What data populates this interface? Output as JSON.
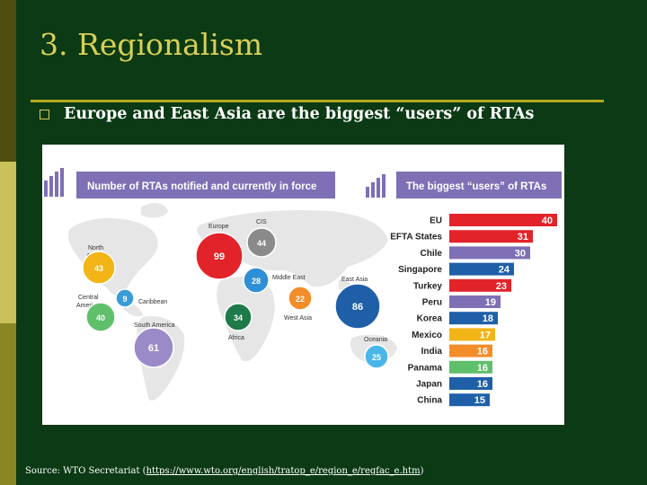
{
  "slide": {
    "title": "3. Regionalism",
    "bullet": "Europe and East Asia are the biggest “users” of RTAs",
    "source_prefix": "Source: WTO Secretariat (",
    "source_link": "https://www.wto.org/english/tratop_e/region_e/regfac_e.htm",
    "source_suffix": ")"
  },
  "map": {
    "header": "Number of RTAs notified and currently in force",
    "regions": [
      {
        "name": "North America",
        "value": "43",
        "color": "#f2b417"
      },
      {
        "name": "Central America",
        "value": "40",
        "color": "#5fbf6a"
      },
      {
        "name": "Caribbean",
        "value": "9",
        "color": "#3a9bd5"
      },
      {
        "name": "South America",
        "value": "61",
        "color": "#9b8ac8"
      },
      {
        "name": "Europe",
        "value": "99",
        "color": "#e2232a"
      },
      {
        "name": "CIS",
        "value": "44",
        "color": "#8a8a8a"
      },
      {
        "name": "Middle East",
        "value": "28",
        "color": "#2e8fd6"
      },
      {
        "name": "West Asia",
        "value": "22",
        "color": "#f28d2a"
      },
      {
        "name": "Africa",
        "value": "34",
        "color": "#1f7a4a"
      },
      {
        "name": "East Asia",
        "value": "86",
        "color": "#1f5fa8"
      },
      {
        "name": "Oceania",
        "value": "25",
        "color": "#4ab6e8"
      }
    ]
  },
  "chart_data": {
    "type": "bar",
    "title": "The biggest “users” of RTAs",
    "categories": [
      "EU",
      "EFTA States",
      "Chile",
      "Singapore",
      "Turkey",
      "Peru",
      "Korea",
      "Mexico",
      "India",
      "Panama",
      "Japan",
      "China"
    ],
    "values": [
      40,
      31,
      30,
      24,
      23,
      19,
      18,
      17,
      16,
      16,
      16,
      15
    ],
    "colors": [
      "#e2232a",
      "#e2232a",
      "#7f6fb5",
      "#1f5fa8",
      "#e2232a",
      "#7f6fb5",
      "#1f5fa8",
      "#f2b417",
      "#f28d2a",
      "#5fbf6a",
      "#1f5fa8",
      "#1f5fa8"
    ]
  }
}
